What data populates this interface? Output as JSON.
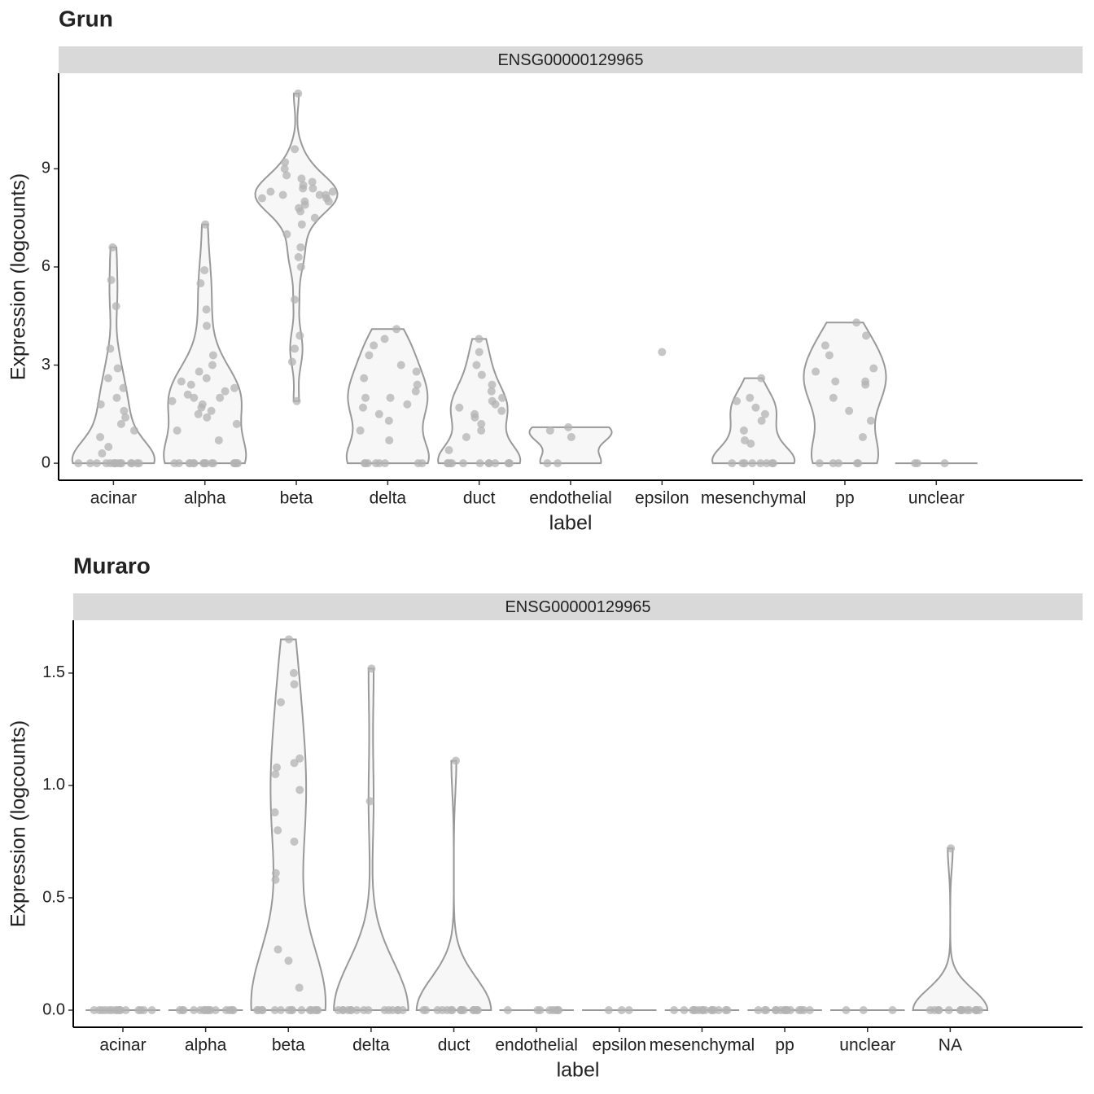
{
  "chart_data": [
    {
      "type": "violin",
      "title": "Grun",
      "strip": "ENSG00000129965",
      "x_label": "label",
      "y_label": "Expression (logcounts)",
      "categories": [
        "acinar",
        "alpha",
        "beta",
        "delta",
        "duct",
        "endothelial",
        "epsilon",
        "mesenchymal",
        "pp",
        "unclear"
      ],
      "values": [
        [
          0,
          0,
          0,
          0,
          0,
          0,
          0,
          0,
          0,
          0,
          0,
          0,
          0,
          0,
          0,
          0.3,
          0.5,
          0.8,
          1.0,
          1.2,
          1.4,
          1.6,
          1.8,
          2.0,
          2.3,
          2.6,
          2.9,
          3.5,
          4.8,
          5.6,
          6.6
        ],
        [
          0,
          0,
          0,
          0,
          0,
          0,
          0,
          0,
          0,
          0,
          0,
          0,
          0,
          0,
          0,
          0.7,
          1.0,
          1.2,
          1.4,
          1.5,
          1.6,
          1.7,
          1.8,
          1.9,
          2.0,
          2.0,
          2.1,
          2.2,
          2.3,
          2.4,
          2.5,
          2.6,
          2.8,
          3.0,
          3.3,
          4.2,
          4.7,
          5.5,
          5.9,
          7.3
        ],
        [
          1.9,
          3.1,
          3.5,
          3.9,
          5.0,
          6.0,
          6.3,
          6.6,
          7.0,
          7.3,
          7.5,
          7.7,
          7.8,
          7.9,
          8.0,
          8.0,
          8.1,
          8.1,
          8.2,
          8.2,
          8.2,
          8.3,
          8.3,
          8.4,
          8.4,
          8.5,
          8.6,
          8.7,
          8.8,
          9.0,
          9.2,
          9.6,
          11.3
        ],
        [
          0,
          0,
          0,
          0,
          0,
          0,
          0,
          0,
          0.7,
          1.0,
          1.3,
          1.5,
          1.7,
          1.8,
          2.0,
          2.0,
          2.2,
          2.4,
          2.6,
          2.8,
          3.0,
          3.3,
          3.6,
          3.8,
          4.1
        ],
        [
          0,
          0,
          0,
          0,
          0,
          0,
          0,
          0,
          0,
          0,
          0,
          0,
          0.4,
          0.8,
          1.0,
          1.2,
          1.4,
          1.5,
          1.6,
          1.7,
          1.8,
          1.9,
          2.0,
          2.2,
          2.4,
          2.7,
          3.0,
          3.4,
          3.8
        ],
        [
          0,
          0,
          0.8,
          1.0,
          1.1
        ],
        [
          3.4
        ],
        [
          0,
          0,
          0,
          0,
          0,
          0,
          0,
          0,
          0.6,
          0.7,
          1.0,
          1.3,
          1.5,
          1.7,
          1.9,
          2.0,
          2.6
        ],
        [
          0,
          0,
          0,
          0,
          0,
          0.8,
          1.3,
          1.6,
          2.0,
          2.4,
          2.5,
          2.5,
          2.8,
          2.9,
          3.3,
          3.6,
          3.9,
          4.3
        ],
        [
          0,
          0,
          0
        ]
      ],
      "ylim": [
        -0.52,
        11.92
      ],
      "yticks": [
        0,
        3,
        6,
        9
      ],
      "color": "#999999",
      "point_color": "#b3b3b3"
    },
    {
      "type": "violin",
      "title": "Muraro",
      "strip": "ENSG00000129965",
      "x_label": "label",
      "y_label": "Expression (logcounts)",
      "categories": [
        "acinar",
        "alpha",
        "beta",
        "delta",
        "duct",
        "endothelial",
        "epsilon",
        "mesenchymal",
        "pp",
        "unclear",
        "NA"
      ],
      "values": [
        [
          0,
          0,
          0,
          0,
          0,
          0,
          0,
          0,
          0,
          0,
          0,
          0,
          0,
          0,
          0
        ],
        [
          0,
          0,
          0,
          0,
          0,
          0,
          0,
          0,
          0,
          0,
          0,
          0,
          0,
          0,
          0
        ],
        [
          0,
          0,
          0,
          0,
          0,
          0,
          0,
          0,
          0,
          0,
          0,
          0,
          0,
          0,
          0,
          0.1,
          0.22,
          0.27,
          0.58,
          0.61,
          0.75,
          0.8,
          0.88,
          0.98,
          1.05,
          1.08,
          1.1,
          1.12,
          1.37,
          1.45,
          1.5,
          1.65
        ],
        [
          0,
          0,
          0,
          0,
          0,
          0,
          0,
          0,
          0,
          0,
          0,
          0,
          0,
          0,
          0,
          0.93,
          1.52
        ],
        [
          0,
          0,
          0,
          0,
          0,
          0,
          0,
          0,
          0,
          0,
          0,
          0,
          0,
          0,
          0,
          1.11
        ],
        [
          0,
          0,
          0,
          0,
          0,
          0,
          0,
          0
        ],
        [
          0,
          0,
          0
        ],
        [
          0,
          0,
          0,
          0,
          0,
          0,
          0,
          0,
          0,
          0,
          0,
          0,
          0,
          0,
          0
        ],
        [
          0,
          0,
          0,
          0,
          0,
          0,
          0,
          0,
          0,
          0,
          0,
          0,
          0,
          0,
          0
        ],
        [
          0,
          0,
          0
        ],
        [
          0,
          0,
          0,
          0,
          0,
          0,
          0,
          0,
          0,
          0,
          0,
          0,
          0,
          0,
          0,
          0.72
        ]
      ],
      "ylim": [
        -0.076,
        1.735
      ],
      "yticks": [
        {
          "value": 0,
          "label": "0.0"
        },
        {
          "value": 0.5,
          "label": "0.5"
        },
        {
          "value": 1,
          "label": "1.0"
        },
        {
          "value": 1.5,
          "label": "1.5"
        }
      ],
      "color": "#999999",
      "point_color": "#b3b3b3"
    }
  ]
}
